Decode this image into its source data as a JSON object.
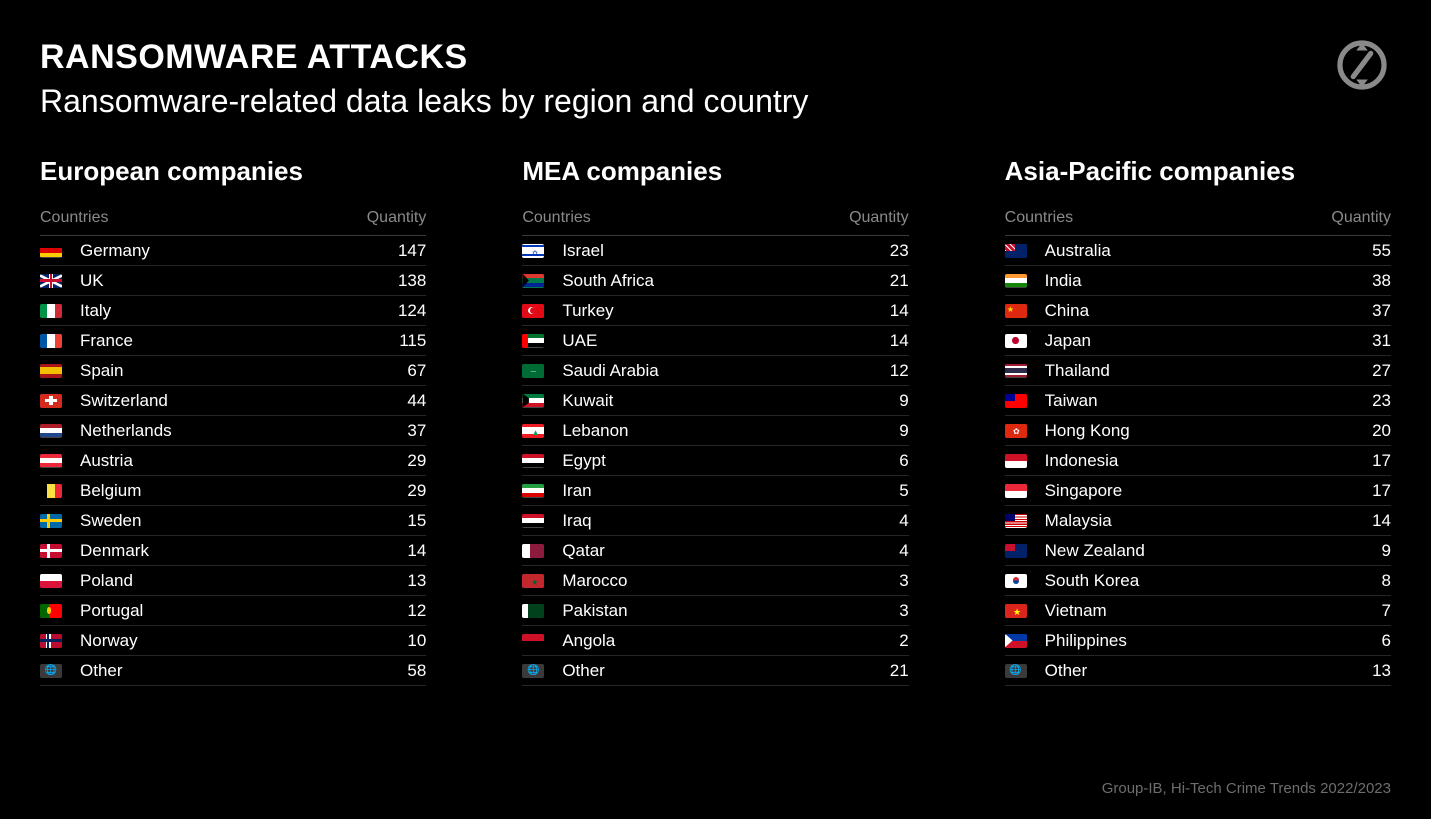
{
  "colors": {
    "background": "#000000",
    "text": "#ffffff",
    "muted": "#8a8a8a",
    "header_divider": "#3a3a3a",
    "row_divider": "#262626",
    "footer": "#6d6d6d",
    "logo": "#b9b9b9"
  },
  "typography": {
    "title_fontsize": 34,
    "subtitle_fontsize": 32,
    "region_title_fontsize": 26,
    "header_fontsize": 16,
    "row_fontsize": 17,
    "footer_fontsize": 15
  },
  "title": "RANSOMWARE ATTACKS",
  "subtitle": "Ransomware-related data leaks by region and country",
  "column_headers": {
    "country": "Countries",
    "quantity": "Quantity"
  },
  "footer": "Group-IB, Hi-Tech Crime Trends 2022/2023",
  "regions": [
    {
      "title": "European companies",
      "rows": [
        {
          "country": "Germany",
          "quantity": 147,
          "flag": "de"
        },
        {
          "country": "UK",
          "quantity": 138,
          "flag": "gb"
        },
        {
          "country": "Italy",
          "quantity": 124,
          "flag": "it"
        },
        {
          "country": "France",
          "quantity": 115,
          "flag": "fr"
        },
        {
          "country": "Spain",
          "quantity": 67,
          "flag": "es"
        },
        {
          "country": "Switzerland",
          "quantity": 44,
          "flag": "ch"
        },
        {
          "country": "Netherlands",
          "quantity": 37,
          "flag": "nl"
        },
        {
          "country": "Austria",
          "quantity": 29,
          "flag": "at"
        },
        {
          "country": "Belgium",
          "quantity": 29,
          "flag": "be"
        },
        {
          "country": "Sweden",
          "quantity": 15,
          "flag": "se"
        },
        {
          "country": "Denmark",
          "quantity": 14,
          "flag": "dk"
        },
        {
          "country": "Poland",
          "quantity": 13,
          "flag": "pl"
        },
        {
          "country": "Portugal",
          "quantity": 12,
          "flag": "pt"
        },
        {
          "country": "Norway",
          "quantity": 10,
          "flag": "no"
        },
        {
          "country": "Other",
          "quantity": 58,
          "flag": "other"
        }
      ]
    },
    {
      "title": "MEA companies",
      "rows": [
        {
          "country": "Israel",
          "quantity": 23,
          "flag": "il"
        },
        {
          "country": "South Africa",
          "quantity": 21,
          "flag": "za"
        },
        {
          "country": "Turkey",
          "quantity": 14,
          "flag": "tr"
        },
        {
          "country": "UAE",
          "quantity": 14,
          "flag": "ae"
        },
        {
          "country": "Saudi Arabia",
          "quantity": 12,
          "flag": "sa"
        },
        {
          "country": "Kuwait",
          "quantity": 9,
          "flag": "kw"
        },
        {
          "country": "Lebanon",
          "quantity": 9,
          "flag": "lb"
        },
        {
          "country": "Egypt",
          "quantity": 6,
          "flag": "eg"
        },
        {
          "country": "Iran",
          "quantity": 5,
          "flag": "ir"
        },
        {
          "country": "Iraq",
          "quantity": 4,
          "flag": "iq"
        },
        {
          "country": "Qatar",
          "quantity": 4,
          "flag": "qa"
        },
        {
          "country": "Marocco",
          "quantity": 3,
          "flag": "ma"
        },
        {
          "country": "Pakistan",
          "quantity": 3,
          "flag": "pk"
        },
        {
          "country": "Angola",
          "quantity": 2,
          "flag": "ao"
        },
        {
          "country": "Other",
          "quantity": 21,
          "flag": "other"
        }
      ]
    },
    {
      "title": "Asia-Pacific companies",
      "rows": [
        {
          "country": "Australia",
          "quantity": 55,
          "flag": "au"
        },
        {
          "country": "India",
          "quantity": 38,
          "flag": "in"
        },
        {
          "country": "China",
          "quantity": 37,
          "flag": "cn"
        },
        {
          "country": "Japan",
          "quantity": 31,
          "flag": "jp"
        },
        {
          "country": "Thailand",
          "quantity": 27,
          "flag": "th"
        },
        {
          "country": "Taiwan",
          "quantity": 23,
          "flag": "tw"
        },
        {
          "country": "Hong Kong",
          "quantity": 20,
          "flag": "hk"
        },
        {
          "country": "Indonesia",
          "quantity": 17,
          "flag": "id"
        },
        {
          "country": "Singapore",
          "quantity": 17,
          "flag": "sg"
        },
        {
          "country": "Malaysia",
          "quantity": 14,
          "flag": "my"
        },
        {
          "country": "New Zealand",
          "quantity": 9,
          "flag": "nz"
        },
        {
          "country": "South Korea",
          "quantity": 8,
          "flag": "kr"
        },
        {
          "country": "Vietnam",
          "quantity": 7,
          "flag": "vn"
        },
        {
          "country": "Philippines",
          "quantity": 6,
          "flag": "ph"
        },
        {
          "country": "Other",
          "quantity": 13,
          "flag": "other"
        }
      ]
    }
  ]
}
